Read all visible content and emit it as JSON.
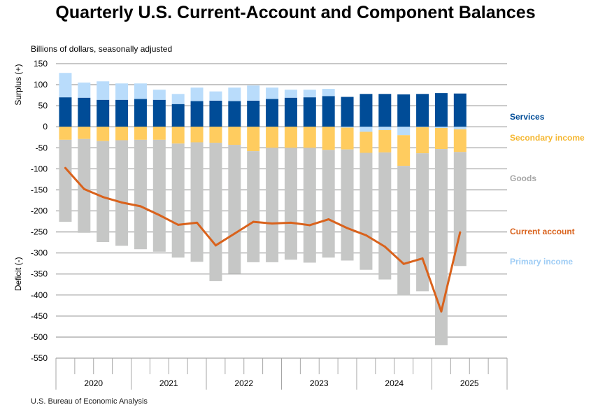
{
  "title": "Quarterly U.S. Current-Account and Component Balances",
  "subtitle": "Billions of dollars, seasonally adjusted",
  "source": "U.S. Bureau of Economic Analysis",
  "colors": {
    "services": "#004c97",
    "primary": "#b9dcfb",
    "secondary": "#ffcc5f",
    "goods": "#c6c7c6",
    "current": "#d9621c",
    "grid": "#a6a6a6"
  },
  "chart_data": {
    "type": "bar",
    "stacked": true,
    "title": "Quarterly U.S. Current-Account and Component Balances",
    "ylabel_top": "Surplus (+)",
    "ylabel_bottom": "Deficit (-)",
    "ylim": [
      -550,
      150
    ],
    "yticks": [
      150,
      100,
      50,
      0,
      -50,
      -100,
      -150,
      -200,
      -250,
      -300,
      -350,
      -400,
      -450,
      -500,
      -550
    ],
    "years": [
      "2020",
      "2021",
      "2022",
      "2023",
      "2024",
      "2025"
    ],
    "categories": [
      "2020Q1",
      "2020Q2",
      "2020Q3",
      "2020Q4",
      "2021Q1",
      "2021Q2",
      "2021Q3",
      "2021Q4",
      "2022Q1",
      "2022Q2",
      "2022Q3",
      "2022Q4",
      "2023Q1",
      "2023Q2",
      "2023Q3",
      "2023Q4",
      "2024Q1",
      "2024Q2",
      "2024Q3",
      "2024Q4",
      "2025Q1",
      "2025Q2"
    ],
    "series": [
      {
        "name": "Services",
        "key": "services",
        "values": [
          70,
          69,
          64,
          64,
          66,
          64,
          54,
          61,
          62,
          61,
          62,
          66,
          69,
          70,
          73,
          71,
          78,
          78,
          77,
          78,
          80,
          79
        ]
      },
      {
        "name": "Primary income",
        "key": "primary",
        "values": [
          58,
          36,
          44,
          39,
          37,
          24,
          24,
          32,
          22,
          32,
          36,
          27,
          19,
          18,
          17,
          -2,
          -12,
          -8,
          -20,
          -1,
          -3,
          -6
        ]
      },
      {
        "name": "Secondary income",
        "key": "secondary",
        "values": [
          -31,
          -29,
          -34,
          -32,
          -31,
          -31,
          -40,
          -37,
          -38,
          -43,
          -58,
          -50,
          -50,
          -50,
          -55,
          -52,
          -50,
          -53,
          -73,
          -62,
          -50,
          -54
        ]
      },
      {
        "name": "Goods",
        "key": "goods",
        "values": [
          -195,
          -223,
          -240,
          -251,
          -260,
          -266,
          -271,
          -284,
          -329,
          -306,
          -264,
          -272,
          -266,
          -273,
          -256,
          -264,
          -278,
          -302,
          -308,
          -328,
          -466,
          -271
        ]
      },
      {
        "name": "Current account",
        "key": "current",
        "type": "line",
        "values": [
          -98,
          -148,
          -167,
          -180,
          -189,
          -210,
          -233,
          -228,
          -282,
          -254,
          -226,
          -230,
          -228,
          -234,
          -220,
          -241,
          -258,
          -285,
          -326,
          -313,
          -439,
          -251
        ]
      }
    ],
    "legend": [
      "Services",
      "Secondary income",
      "Goods",
      "Current account",
      "Primary income"
    ],
    "legend_placement": "right"
  }
}
